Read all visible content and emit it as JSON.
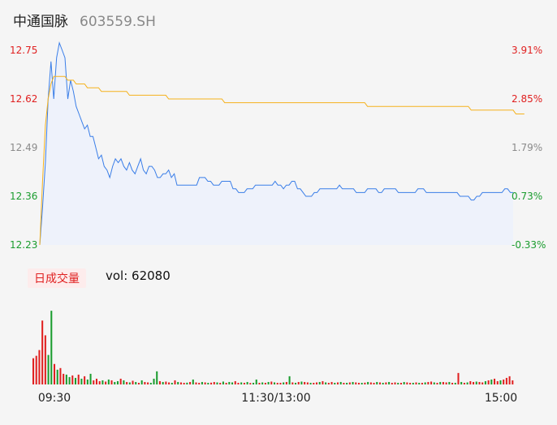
{
  "header": {
    "stock_name": "中通国脉",
    "stock_code": "603559.SH"
  },
  "volume_panel": {
    "badge_label": "日成交量",
    "vol_label": "vol: 62080"
  },
  "colors": {
    "price_line": "#3a7ee8",
    "avg_line": "#f5b21c",
    "area_fill": "#eef2fb",
    "up": "#e02020",
    "down": "#1a9c2e",
    "neutral": "#8a8a8a",
    "tick_text": "#555555"
  },
  "chart_data": [
    {
      "type": "line",
      "title": "",
      "series": [
        {
          "name": "",
          "values": [
            12.23,
            12.33,
            12.45,
            12.62,
            12.72,
            12.62,
            12.73,
            12.77,
            12.75,
            12.73,
            12.62,
            12.67,
            12.64,
            12.6,
            12.58,
            12.56,
            12.54,
            12.55,
            12.52,
            12.52,
            12.49,
            12.46,
            12.47,
            12.44,
            12.43,
            12.41,
            12.44,
            12.46,
            12.45,
            12.46,
            12.44,
            12.43,
            12.45,
            12.43,
            12.42,
            12.44,
            12.46,
            12.43,
            12.42,
            12.44,
            12.44,
            12.43,
            12.41,
            12.41,
            12.42,
            12.42,
            12.43,
            12.41,
            12.42,
            12.39,
            12.39,
            12.39,
            12.39,
            12.39,
            12.39,
            12.39,
            12.39,
            12.41,
            12.41,
            12.41,
            12.4,
            12.4,
            12.39,
            12.39,
            12.39,
            12.4,
            12.4,
            12.4,
            12.4,
            12.38,
            12.38,
            12.37,
            12.37,
            12.37,
            12.38,
            12.38,
            12.38,
            12.39,
            12.39,
            12.39,
            12.39,
            12.39,
            12.39,
            12.39,
            12.4,
            12.39,
            12.39,
            12.38,
            12.39,
            12.39,
            12.4,
            12.4,
            12.38,
            12.38,
            12.37,
            12.36,
            12.36,
            12.36,
            12.37,
            12.37,
            12.38,
            12.38,
            12.38,
            12.38,
            12.38,
            12.38,
            12.38,
            12.39,
            12.38,
            12.38,
            12.38,
            12.38,
            12.38,
            12.37,
            12.37,
            12.37,
            12.37,
            12.38,
            12.38,
            12.38,
            12.38,
            12.37,
            12.37,
            12.38,
            12.38,
            12.38,
            12.38,
            12.38,
            12.37,
            12.37,
            12.37,
            12.37,
            12.37,
            12.37,
            12.37,
            12.38,
            12.38,
            12.38,
            12.37,
            12.37,
            12.37,
            12.37,
            12.37,
            12.37,
            12.37,
            12.37,
            12.37,
            12.37,
            12.37,
            12.37,
            12.36,
            12.36,
            12.36,
            12.36,
            12.35,
            12.35,
            12.36,
            12.36,
            12.37,
            12.37,
            12.37,
            12.37,
            12.37,
            12.37,
            12.37,
            12.37,
            12.38,
            12.38,
            12.37,
            12.37
          ]
        },
        {
          "name": "",
          "values": [
            12.23,
            12.4,
            12.55,
            12.62,
            12.66,
            12.68,
            12.68,
            12.68,
            12.68,
            12.68,
            12.67,
            12.67,
            12.67,
            12.66,
            12.66,
            12.66,
            12.66,
            12.65,
            12.65,
            12.65,
            12.65,
            12.65,
            12.64,
            12.64,
            12.64,
            12.64,
            12.64,
            12.64,
            12.64,
            12.64,
            12.64,
            12.64,
            12.63,
            12.63,
            12.63,
            12.63,
            12.63,
            12.63,
            12.63,
            12.63,
            12.63,
            12.63,
            12.63,
            12.63,
            12.63,
            12.63,
            12.62,
            12.62,
            12.62,
            12.62,
            12.62,
            12.62,
            12.62,
            12.62,
            12.62,
            12.62,
            12.62,
            12.62,
            12.62,
            12.62,
            12.62,
            12.62,
            12.62,
            12.62,
            12.62,
            12.62,
            12.61,
            12.61,
            12.61,
            12.61,
            12.61,
            12.61,
            12.61,
            12.61,
            12.61,
            12.61,
            12.61,
            12.61,
            12.61,
            12.61,
            12.61,
            12.61,
            12.61,
            12.61,
            12.61,
            12.61,
            12.61,
            12.61,
            12.61,
            12.61,
            12.61,
            12.61,
            12.61,
            12.61,
            12.61,
            12.61,
            12.61,
            12.61,
            12.61,
            12.61,
            12.61,
            12.61,
            12.61,
            12.61,
            12.61,
            12.61,
            12.61,
            12.61,
            12.61,
            12.61,
            12.61,
            12.61,
            12.61,
            12.61,
            12.61,
            12.61,
            12.61,
            12.6,
            12.6,
            12.6,
            12.6,
            12.6,
            12.6,
            12.6,
            12.6,
            12.6,
            12.6,
            12.6,
            12.6,
            12.6,
            12.6,
            12.6,
            12.6,
            12.6,
            12.6,
            12.6,
            12.6,
            12.6,
            12.6,
            12.6,
            12.6,
            12.6,
            12.6,
            12.6,
            12.6,
            12.6,
            12.6,
            12.6,
            12.6,
            12.6,
            12.6,
            12.6,
            12.6,
            12.6,
            12.59,
            12.59,
            12.59,
            12.59,
            12.59,
            12.59,
            12.59,
            12.59,
            12.59,
            12.59,
            12.59,
            12.59,
            12.59,
            12.59,
            12.59,
            12.59,
            12.58,
            12.58,
            12.58,
            12.58
          ]
        }
      ],
      "ylim": [
        12.23,
        12.75
      ],
      "y_ticks_left": [
        "12.75",
        "12.62",
        "12.49",
        "12.36",
        "12.23"
      ],
      "y_ticks_right": [
        "3.91%",
        "2.85%",
        "1.79%",
        "0.73%",
        "-0.33%"
      ],
      "tick_colors": [
        "up",
        "up",
        "neutral",
        "down",
        "down"
      ],
      "grid": false
    },
    {
      "type": "bar",
      "title": "",
      "x_ticks": [
        "09:30",
        "11:30/13:00",
        "15:00"
      ],
      "values": [
        3200,
        3500,
        4200,
        7800,
        6000,
        3600,
        9000,
        2500,
        1800,
        2000,
        1300,
        1200,
        900,
        1100,
        800,
        1200,
        700,
        1000,
        600,
        1300,
        500,
        700,
        400,
        500,
        350,
        600,
        500,
        300,
        400,
        700,
        500,
        300,
        250,
        450,
        300,
        200,
        500,
        300,
        250,
        200,
        700,
        1600,
        400,
        300,
        350,
        250,
        200,
        500,
        300,
        250,
        200,
        220,
        300,
        600,
        250,
        200,
        300,
        250,
        200,
        220,
        300,
        250,
        200,
        350,
        200,
        300,
        250,
        400,
        200,
        250,
        200,
        300,
        180,
        200,
        600,
        200,
        250,
        200,
        300,
        350,
        250,
        200,
        200,
        250,
        300,
        1000,
        250,
        200,
        300,
        350,
        300,
        250,
        200,
        200,
        250,
        300,
        400,
        250,
        200,
        300,
        200,
        250,
        300,
        200,
        200,
        250,
        300,
        250,
        200,
        200,
        220,
        300,
        250,
        200,
        300,
        250,
        200,
        250,
        300,
        200,
        250,
        200,
        200,
        300,
        250,
        200,
        200,
        250,
        200,
        200,
        250,
        300,
        350,
        250,
        200,
        300,
        300,
        250,
        300,
        200,
        200,
        1400,
        300,
        200,
        250,
        400,
        300,
        350,
        300,
        250,
        400,
        500,
        600,
        700,
        400,
        500,
        600,
        800,
        1000,
        500
      ],
      "colors": [
        "up",
        "up",
        "up",
        "up",
        "up",
        "down",
        "down",
        "up",
        "down",
        "up",
        "up",
        "down",
        "down",
        "up",
        "down",
        "up",
        "down",
        "up",
        "down",
        "down",
        "up",
        "up",
        "up",
        "down",
        "up",
        "down",
        "up",
        "down",
        "down",
        "up",
        "down",
        "up",
        "down",
        "up",
        "down",
        "up",
        "down",
        "up",
        "up",
        "down",
        "down",
        "down",
        "up",
        "down",
        "up",
        "up",
        "down",
        "up",
        "down",
        "up",
        "up",
        "down",
        "up",
        "down",
        "up",
        "up",
        "down",
        "up",
        "down",
        "up",
        "up",
        "down",
        "up",
        "down",
        "up",
        "down",
        "down",
        "up",
        "up",
        "down",
        "up",
        "down",
        "up",
        "down",
        "down",
        "up",
        "down",
        "up",
        "down",
        "up",
        "down",
        "up",
        "up",
        "down",
        "up",
        "down",
        "up",
        "down",
        "up",
        "down",
        "up",
        "up",
        "down",
        "up",
        "up",
        "down",
        "up",
        "down",
        "up",
        "up",
        "down",
        "up",
        "down",
        "up",
        "down",
        "up",
        "down",
        "up",
        "up",
        "down",
        "up",
        "down",
        "up",
        "up",
        "down",
        "up",
        "down",
        "up",
        "down",
        "up",
        "up",
        "down",
        "up",
        "down",
        "up",
        "up",
        "down",
        "up",
        "down",
        "up",
        "down",
        "up",
        "up",
        "down",
        "up",
        "down",
        "up",
        "up",
        "down",
        "up",
        "down",
        "up",
        "down",
        "up",
        "down",
        "up",
        "up",
        "down",
        "up",
        "up",
        "down",
        "up",
        "down",
        "up",
        "up",
        "down",
        "up",
        "up",
        "up",
        "up",
        "down",
        "up"
      ],
      "ylim": [
        0,
        10500
      ],
      "grid": false
    }
  ]
}
